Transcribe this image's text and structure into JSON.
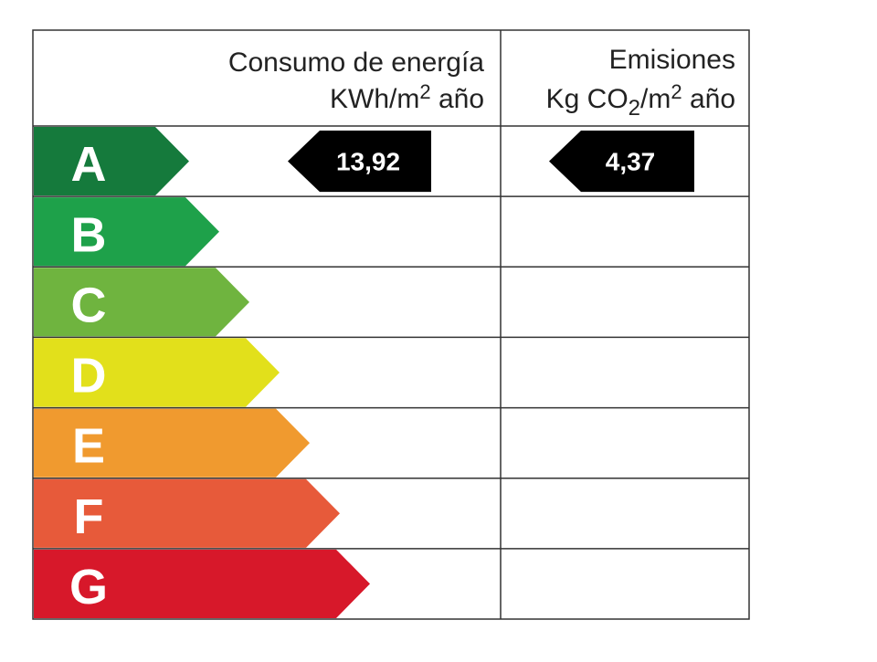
{
  "header": {
    "energy": {
      "title": "Consumo de energía",
      "unit_main": "KWh/m",
      "unit_sup": "2",
      "unit_end": " año"
    },
    "emissions": {
      "title": "Emisiones",
      "unit_a": "Kg CO",
      "unit_sub": "2",
      "unit_b": "/m",
      "unit_sup": "2",
      "unit_end": " año"
    }
  },
  "ratings": [
    {
      "letter": "A",
      "color": "#157a3c"
    },
    {
      "letter": "B",
      "color": "#1ea14a"
    },
    {
      "letter": "C",
      "color": "#6fb43f"
    },
    {
      "letter": "D",
      "color": "#e2e01b"
    },
    {
      "letter": "E",
      "color": "#f09a2f"
    },
    {
      "letter": "F",
      "color": "#e75a3a"
    },
    {
      "letter": "G",
      "color": "#d7182a"
    }
  ],
  "indicators": {
    "row": 0,
    "energy": "13,92",
    "emissions": "4,37"
  }
}
